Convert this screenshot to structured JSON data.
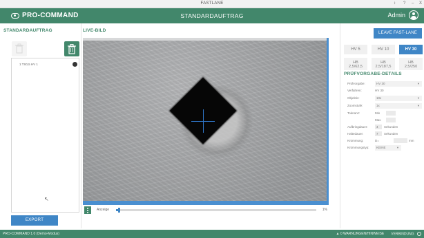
{
  "window": {
    "title": "FASTLANE",
    "controls": [
      "↕",
      "?",
      "–",
      "X"
    ]
  },
  "header": {
    "logo_text": "PRO-COMMAND",
    "title": "STANDARDAUFTRAG",
    "user": "Admin"
  },
  "left_panel": {
    "title": "STANDARDAUFTRAG",
    "orders": [
      {
        "label": "1 TS0,5 HV 1"
      }
    ],
    "export_label": "EXPORT"
  },
  "center": {
    "title": "LIVE-BILD",
    "anzeige_label": "Anzeige",
    "anzeige_percent": "1%",
    "anzeige_value": 0.01
  },
  "right_panel": {
    "leave_label": "LEAVE FAST-LANE",
    "hv_buttons": [
      {
        "label": "HV 5",
        "active": false
      },
      {
        "label": "HV 10",
        "active": false
      },
      {
        "label": "HV 30",
        "active": true
      }
    ],
    "hb_buttons": [
      {
        "line1": "HB",
        "line2": "2,5/62,5"
      },
      {
        "line1": "HB",
        "line2": "2,5/187,5"
      },
      {
        "line1": "HB",
        "line2": "2,5/250"
      }
    ],
    "details_title": "PRÜFVORGABE-DETAILS",
    "details": {
      "pruefvorgabe": {
        "label": "Prüfvorgabe:",
        "value": "HV 30"
      },
      "verfahren": {
        "label": "Verfahren:",
        "value": "HV 30"
      },
      "objektiv": {
        "label": "Objektiv:",
        "value": "10x"
      },
      "zoomstufe": {
        "label": "Zoomstufe:",
        "value": "1x"
      },
      "toleranz": {
        "label": "Toleranz:",
        "min": "Min",
        "max": "Max"
      },
      "aufbringdauer": {
        "label": "Aufbringdauer:",
        "value": "4",
        "unit": "Sekunden"
      },
      "haltedauer": {
        "label": "Haltedauer:",
        "value": "7",
        "unit": "Sekunden"
      },
      "kruemmung": {
        "label": "Krümmung:",
        "value": "D=",
        "unit": "mm"
      },
      "kruemmungstyp": {
        "label": "Krümmungstyp:",
        "value": "KEINE"
      }
    }
  },
  "footer": {
    "left": "PRO-COMMAND 1.0 (Demo-Modus)",
    "warnings": "0 WARNUNGEN/HINWEISE",
    "connection": "VERBINDUNG"
  },
  "colors": {
    "brand_green": "#42876b",
    "accent_blue": "#3f86c6"
  }
}
